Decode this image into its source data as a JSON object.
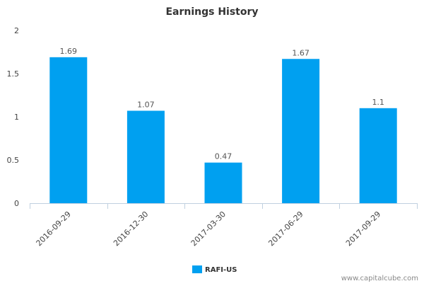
{
  "chart_data": {
    "type": "bar",
    "title": "Earnings History",
    "categories": [
      "2016-09-29",
      "2016-12-30",
      "2017-03-30",
      "2017-06-29",
      "2017-09-29"
    ],
    "series": [
      {
        "name": "RAFI-US",
        "values": [
          1.69,
          1.07,
          0.47,
          1.67,
          1.1
        ],
        "color": "#00a0f0"
      }
    ],
    "data_labels": [
      "1.69",
      "1.07",
      "0.47",
      "1.67",
      "1.1"
    ],
    "y_ticks": [
      "0",
      "0.5",
      "1",
      "1.5",
      "2"
    ],
    "ylim": [
      0,
      2
    ],
    "xlabel": "",
    "ylabel": "",
    "grid": false,
    "legend_position": "bottom-center"
  },
  "credit": "www.capitalcube.com"
}
